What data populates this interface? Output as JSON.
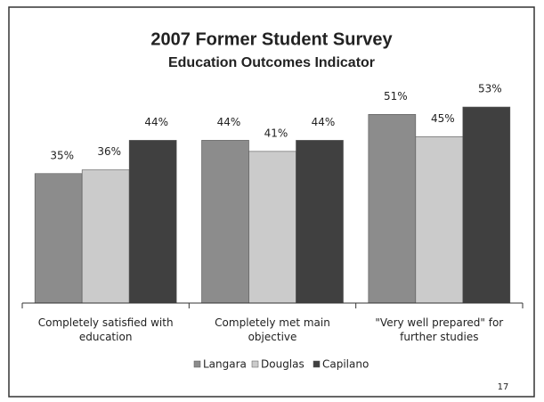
{
  "chart_data": {
    "type": "bar",
    "title": "2007 Former Student Survey",
    "subtitle": "Education Outcomes Indicator",
    "categories": [
      "Completely satisfied with education",
      "Completely met main objective",
      "\"Very well prepared\" for further studies"
    ],
    "series": [
      {
        "name": "Langara",
        "color": "#8c8c8c",
        "values": [
          35,
          44,
          51
        ],
        "value_labels": [
          "35%",
          "44%",
          "51%"
        ]
      },
      {
        "name": "Douglas",
        "color": "#cbcbcb",
        "values": [
          36,
          41,
          45
        ],
        "value_labels": [
          "36%",
          "41%",
          "45%"
        ]
      },
      {
        "name": "Capilano",
        "color": "#404040",
        "values": [
          44,
          44,
          53
        ],
        "value_labels": [
          "44%",
          "44%",
          "53%"
        ]
      }
    ],
    "ylim": [
      0,
      60
    ],
    "page_number": "17"
  }
}
